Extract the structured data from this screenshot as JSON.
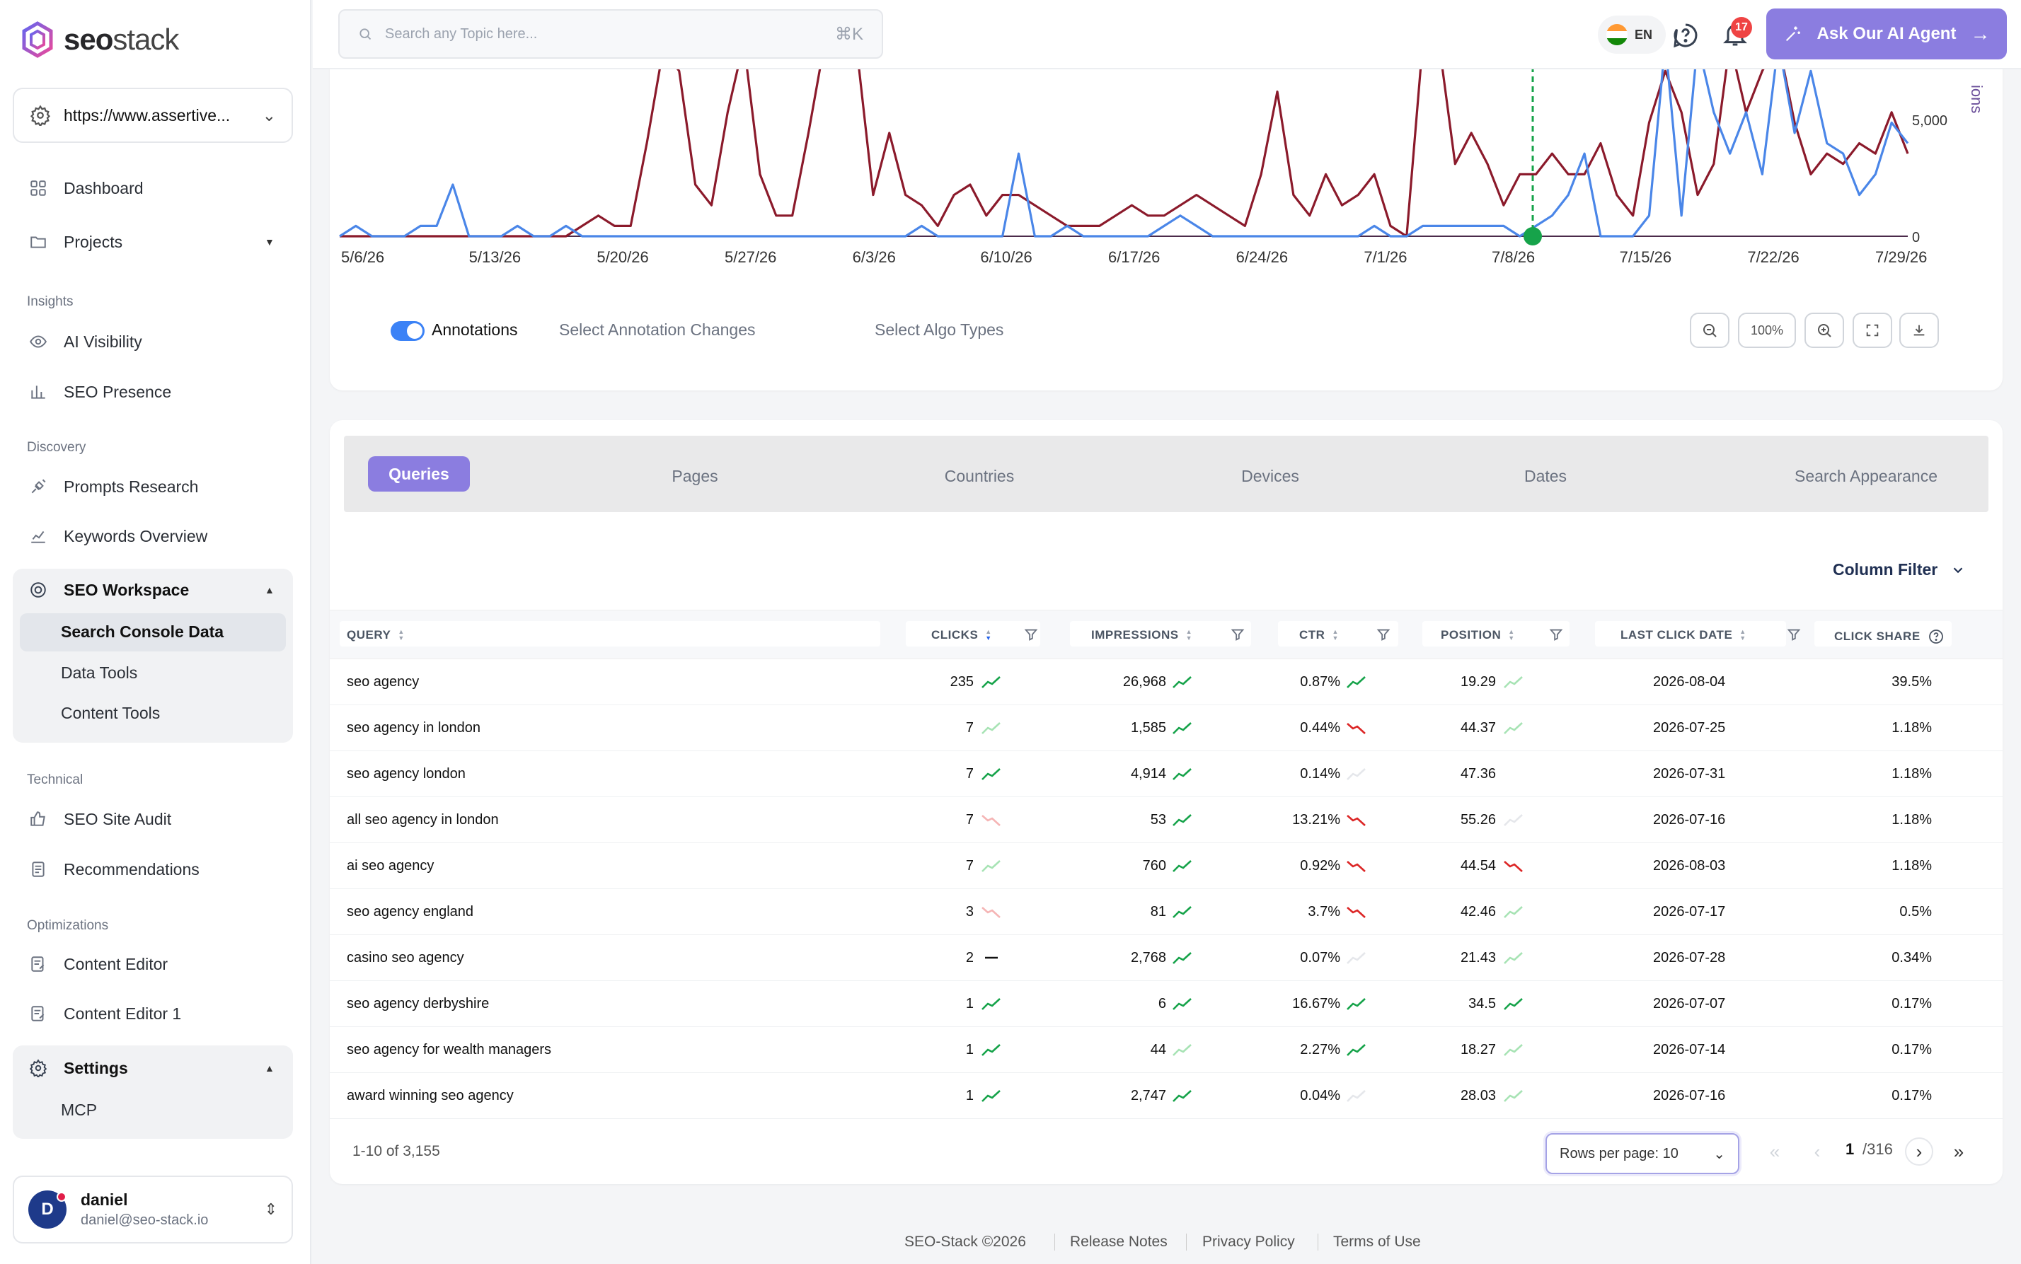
{
  "brand": {
    "name_bold": "seo",
    "name_light": "stack"
  },
  "site_selector": {
    "value": "https://www.assertive..."
  },
  "sidebar": {
    "dashboard": "Dashboard",
    "projects": "Projects",
    "section_insights": "Insights",
    "ai_visibility": "AI Visibility",
    "seo_presence": "SEO Presence",
    "section_discovery": "Discovery",
    "prompts_research": "Prompts Research",
    "keywords_overview": "Keywords Overview",
    "seo_workspace": "SEO Workspace",
    "search_console_data": "Search Console Data",
    "data_tools": "Data Tools",
    "content_tools": "Content Tools",
    "section_technical": "Technical",
    "seo_site_audit": "SEO Site Audit",
    "recommendations": "Recommendations",
    "section_optimizations": "Optimizations",
    "content_editor": "Content Editor",
    "content_editor_1": "Content Editor 1",
    "settings": "Settings",
    "mcp": "MCP"
  },
  "user": {
    "initial": "D",
    "name": "daniel",
    "email": "daniel@seo-stack.io"
  },
  "header": {
    "search_placeholder": "Search any Topic here...",
    "shortcut": "⌘K",
    "lang": "EN",
    "notifications": "17",
    "agent_button": "Ask Our AI Agent"
  },
  "chart_data": {
    "type": "line",
    "x_ticks": [
      "5/6/26",
      "5/13/26",
      "5/20/26",
      "5/27/26",
      "6/3/26",
      "6/10/26",
      "6/17/26",
      "6/24/26",
      "7/1/26",
      "7/8/26",
      "7/15/26",
      "7/22/26",
      "7/29/26"
    ],
    "y_right_ticks": [
      "5,000",
      "0"
    ],
    "y_right_label_partial": "ions",
    "series": [
      {
        "color": "#8b1a2b",
        "values": [
          0,
          0,
          0,
          0,
          0,
          0,
          0,
          0,
          0,
          0,
          0,
          0,
          0,
          0,
          0,
          5,
          10,
          5,
          5,
          45,
          90,
          80,
          25,
          15,
          60,
          100,
          30,
          10,
          10,
          50,
          100,
          100,
          90,
          20,
          50,
          20,
          15,
          5,
          20,
          25,
          10,
          20,
          20,
          15,
          10,
          5,
          5,
          5,
          10,
          15,
          10,
          10,
          15,
          20,
          15,
          10,
          5,
          30,
          70,
          20,
          10,
          30,
          15,
          20,
          30,
          5,
          0,
          100,
          100,
          35,
          50,
          35,
          15,
          30,
          30,
          40,
          30,
          30,
          45,
          20,
          10,
          55,
          80,
          60,
          20,
          35,
          100,
          60,
          80,
          100,
          55,
          30,
          40,
          35,
          45,
          40,
          60,
          40
        ]
      },
      {
        "color": "#4a86e8",
        "values": [
          0,
          5,
          0,
          0,
          0,
          5,
          5,
          25,
          0,
          0,
          0,
          5,
          0,
          0,
          5,
          0,
          0,
          0,
          0,
          0,
          0,
          0,
          0,
          0,
          0,
          0,
          0,
          0,
          0,
          0,
          0,
          0,
          0,
          0,
          0,
          0,
          5,
          0,
          0,
          0,
          0,
          0,
          40,
          0,
          0,
          5,
          0,
          0,
          0,
          0,
          0,
          5,
          10,
          5,
          0,
          0,
          0,
          0,
          0,
          0,
          0,
          0,
          0,
          0,
          5,
          0,
          0,
          5,
          5,
          5,
          5,
          5,
          5,
          0,
          5,
          10,
          20,
          40,
          0,
          0,
          0,
          10,
          100,
          10,
          100,
          60,
          40,
          60,
          30,
          100,
          50,
          80,
          45,
          40,
          20,
          30,
          55,
          45
        ]
      }
    ],
    "annotation_date": "7/8/26"
  },
  "annotations": {
    "toggle_label": "Annotations",
    "select_changes": "Select Annotation Changes",
    "select_algo": "Select Algo Types",
    "zoom_level": "100%"
  },
  "tabs": [
    "Queries",
    "Pages",
    "Countries",
    "Devices",
    "Dates",
    "Search Appearance"
  ],
  "column_filter": "Column Filter",
  "table": {
    "headers": [
      "QUERY",
      "CLICKS",
      "IMPRESSIONS",
      "CTR",
      "POSITION",
      "LAST CLICK DATE",
      "CLICK SHARE"
    ],
    "rows": [
      {
        "query": "seo agency",
        "clicks": "235",
        "impressions": "26,968",
        "ctr": "0.87%",
        "position": "19.29",
        "last_click": "2026-08-04",
        "share": "39.5%",
        "t": [
          "up",
          "up",
          "up",
          "upl"
        ]
      },
      {
        "query": "seo agency in london",
        "clicks": "7",
        "impressions": "1,585",
        "ctr": "0.44%",
        "position": "44.37",
        "last_click": "2026-07-25",
        "share": "1.18%",
        "t": [
          "upl",
          "up",
          "down",
          "upl"
        ]
      },
      {
        "query": "seo agency london",
        "clicks": "7",
        "impressions": "4,914",
        "ctr": "0.14%",
        "position": "47.36",
        "last_click": "2026-07-31",
        "share": "1.18%",
        "t": [
          "up",
          "up",
          "fl",
          "none"
        ]
      },
      {
        "query": "all seo agency in london",
        "clicks": "7",
        "impressions": "53",
        "ctr": "13.21%",
        "position": "55.26",
        "last_click": "2026-07-16",
        "share": "1.18%",
        "t": [
          "downl",
          "up",
          "down",
          "fl"
        ]
      },
      {
        "query": "ai seo agency",
        "clicks": "7",
        "impressions": "760",
        "ctr": "0.92%",
        "position": "44.54",
        "last_click": "2026-08-03",
        "share": "1.18%",
        "t": [
          "upl",
          "up",
          "down",
          "down"
        ]
      },
      {
        "query": "seo agency england",
        "clicks": "3",
        "impressions": "81",
        "ctr": "3.7%",
        "position": "42.46",
        "last_click": "2026-07-17",
        "share": "0.5%",
        "t": [
          "downl",
          "up",
          "down",
          "upl"
        ]
      },
      {
        "query": "casino seo agency",
        "clicks": "2",
        "impressions": "2,768",
        "ctr": "0.07%",
        "position": "21.43",
        "last_click": "2026-07-28",
        "share": "0.34%",
        "t": [
          "flat",
          "up",
          "fl",
          "upl"
        ]
      },
      {
        "query": "seo agency derbyshire",
        "clicks": "1",
        "impressions": "6",
        "ctr": "16.67%",
        "position": "34.5",
        "last_click": "2026-07-07",
        "share": "0.17%",
        "t": [
          "up",
          "up",
          "up",
          "up"
        ]
      },
      {
        "query": "seo agency for wealth managers",
        "clicks": "1",
        "impressions": "44",
        "ctr": "2.27%",
        "position": "18.27",
        "last_click": "2026-07-14",
        "share": "0.17%",
        "t": [
          "up",
          "upl",
          "up",
          "upl"
        ]
      },
      {
        "query": "award winning seo agency",
        "clicks": "1",
        "impressions": "2,747",
        "ctr": "0.04%",
        "position": "28.03",
        "last_click": "2026-07-16",
        "share": "0.17%",
        "t": [
          "up",
          "up",
          "fl",
          "upl"
        ]
      }
    ]
  },
  "pagination": {
    "range": "1-10 of 3,155",
    "rows_per_page": "Rows per page: 10",
    "page": "1",
    "total_pages": "/316"
  },
  "footer": {
    "copyright": "SEO-Stack ©2026",
    "release_notes": "Release Notes",
    "privacy": "Privacy Policy",
    "terms": "Terms of Use"
  }
}
